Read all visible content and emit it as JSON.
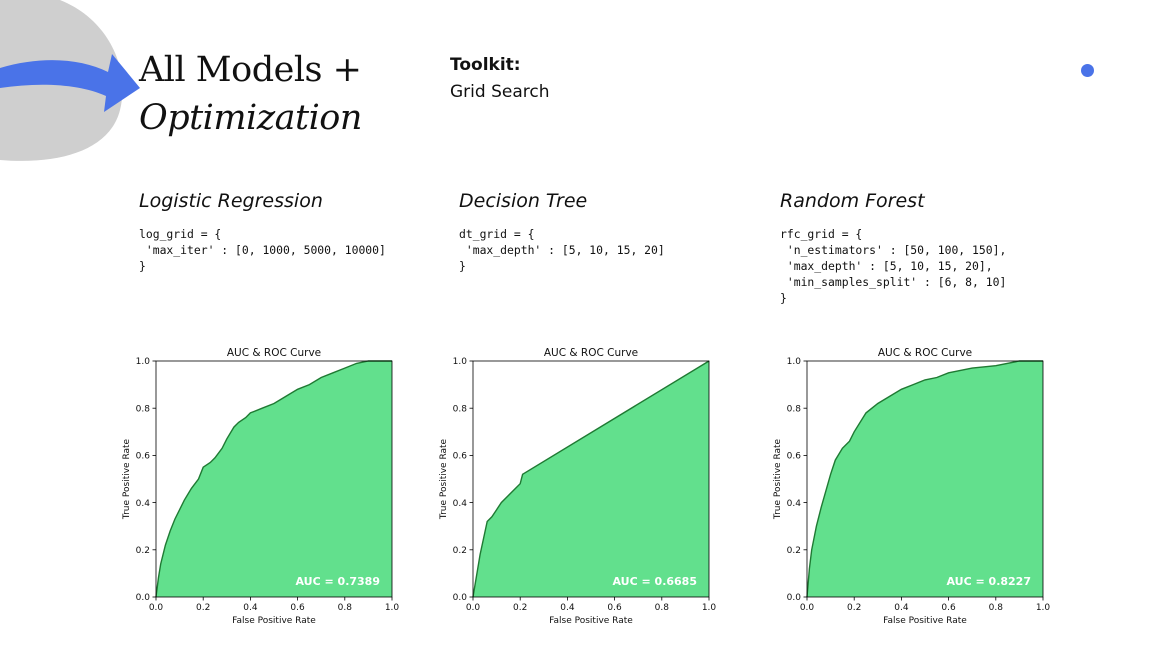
{
  "header": {
    "title_line1": "All Models +",
    "title_line2": "Optimization",
    "toolkit_label": "Toolkit:",
    "toolkit_value": "Grid Search"
  },
  "colors": {
    "accent": "#4a73e8",
    "roc_fill": "#62e08d",
    "roc_line": "#1f7a33",
    "decor_gray": "#cfcfcf"
  },
  "models": [
    {
      "title": "Logistic Regression",
      "code": "log_grid = {\n 'max_iter' : [0, 1000, 5000, 10000]\n}"
    },
    {
      "title": "Decision Tree",
      "code": "dt_grid = {\n 'max_depth' : [5, 10, 15, 20]\n}"
    },
    {
      "title": "Random Forest",
      "code": "rfc_grid = {\n 'n_estimators' : [50, 100, 150],\n 'max_depth' : [5, 10, 15, 20],\n 'min_samples_split' : [6, 8, 10]\n}"
    }
  ],
  "chart_data": [
    {
      "type": "area",
      "title": "AUC & ROC Curve",
      "xlabel": "False Positive Rate",
      "ylabel": "True Positive Rate",
      "xlim": [
        0,
        1
      ],
      "ylim": [
        0,
        1
      ],
      "xticks": [
        "0.0",
        "0.2",
        "0.4",
        "0.6",
        "0.8",
        "1.0"
      ],
      "yticks": [
        "0.0",
        "0.2",
        "0.4",
        "0.6",
        "0.8",
        "1.0"
      ],
      "annotation": "AUC = 0.7389",
      "x": [
        0,
        0.01,
        0.02,
        0.04,
        0.06,
        0.08,
        0.1,
        0.12,
        0.15,
        0.18,
        0.2,
        0.23,
        0.25,
        0.28,
        0.3,
        0.33,
        0.35,
        0.38,
        0.4,
        0.45,
        0.5,
        0.55,
        0.6,
        0.65,
        0.7,
        0.75,
        0.8,
        0.85,
        0.9,
        1.0
      ],
      "y": [
        0,
        0.08,
        0.14,
        0.22,
        0.28,
        0.33,
        0.37,
        0.41,
        0.46,
        0.5,
        0.55,
        0.57,
        0.59,
        0.63,
        0.67,
        0.72,
        0.74,
        0.76,
        0.78,
        0.8,
        0.82,
        0.85,
        0.88,
        0.9,
        0.93,
        0.95,
        0.97,
        0.99,
        1.0,
        1.0
      ]
    },
    {
      "type": "area",
      "title": "AUC & ROC Curve",
      "xlabel": "False Positive Rate",
      "ylabel": "True Positive Rate",
      "xlim": [
        0,
        1
      ],
      "ylim": [
        0,
        1
      ],
      "xticks": [
        "0.0",
        "0.2",
        "0.4",
        "0.6",
        "0.8",
        "1.0"
      ],
      "yticks": [
        "0.0",
        "0.2",
        "0.4",
        "0.6",
        "0.8",
        "1.0"
      ],
      "annotation": "AUC = 0.6685",
      "x": [
        0,
        0.03,
        0.06,
        0.08,
        0.1,
        0.12,
        0.15,
        0.18,
        0.2,
        0.21,
        1.0
      ],
      "y": [
        0,
        0.18,
        0.32,
        0.34,
        0.37,
        0.4,
        0.43,
        0.46,
        0.48,
        0.52,
        1.0
      ]
    },
    {
      "type": "area",
      "title": "AUC & ROC Curve",
      "xlabel": "False Positive Rate",
      "ylabel": "True Positive Rate",
      "xlim": [
        0,
        1
      ],
      "ylim": [
        0,
        1
      ],
      "xticks": [
        "0.0",
        "0.2",
        "0.4",
        "0.6",
        "0.8",
        "1.0"
      ],
      "yticks": [
        "0.0",
        "0.2",
        "0.4",
        "0.6",
        "0.8",
        "1.0"
      ],
      "annotation": "AUC = 0.8227",
      "x": [
        0,
        0.01,
        0.02,
        0.04,
        0.06,
        0.08,
        0.1,
        0.12,
        0.15,
        0.18,
        0.2,
        0.25,
        0.3,
        0.35,
        0.4,
        0.45,
        0.5,
        0.55,
        0.6,
        0.65,
        0.7,
        0.8,
        0.9,
        1.0
      ],
      "y": [
        0,
        0.12,
        0.2,
        0.3,
        0.38,
        0.45,
        0.52,
        0.58,
        0.63,
        0.66,
        0.7,
        0.78,
        0.82,
        0.85,
        0.88,
        0.9,
        0.92,
        0.93,
        0.95,
        0.96,
        0.97,
        0.98,
        1.0,
        1.0
      ]
    }
  ]
}
